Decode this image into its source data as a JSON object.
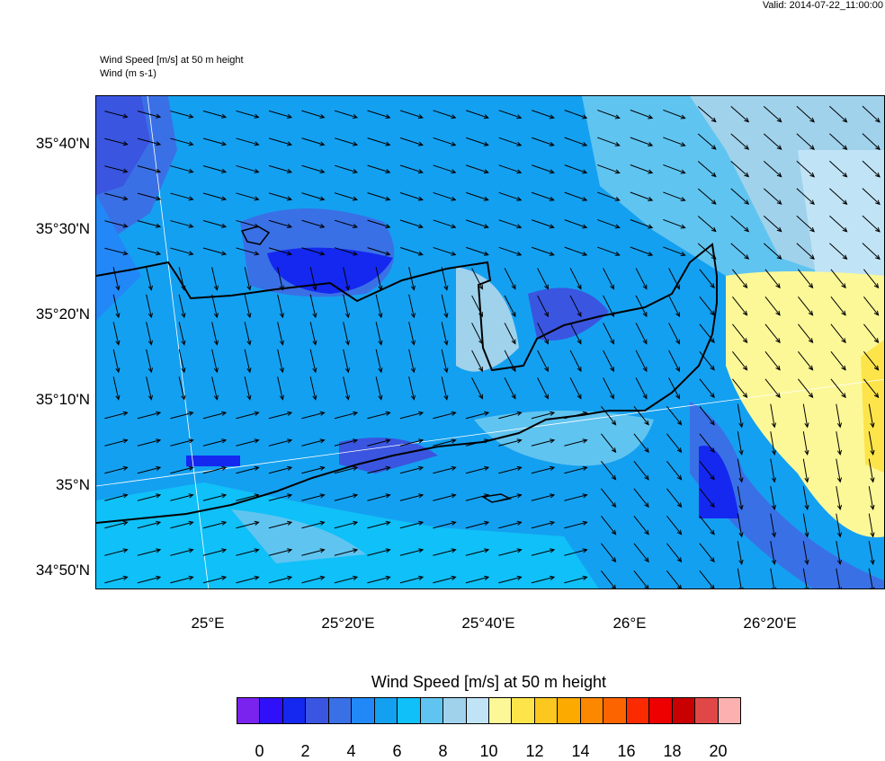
{
  "valid": "Valid: 2014-07-22_11:00:00",
  "title": "Wind Speed [m/s] at 50 m height",
  "subtitle": "Wind   (m s-1)",
  "lat_labels": [
    "35°40'N",
    "35°30'N",
    "35°20'N",
    "35°10'N",
    "35°N",
    "34°50'N"
  ],
  "lon_labels": [
    "25°E",
    "25°20'E",
    "25°40'E",
    "26°E",
    "26°20'E"
  ],
  "colorbar": {
    "title": "Wind Speed [m/s] at 50 m height",
    "colors": [
      "#7a22ee",
      "#3010f8",
      "#1428f0",
      "#3a55e0",
      "#3a70e6",
      "#2288f8",
      "#14a0f0",
      "#10c0f8",
      "#60c4f0",
      "#a0d2ec",
      "#c0e4f5",
      "#fcf898",
      "#fce44a",
      "#fcc820",
      "#fcaa00",
      "#fc8800",
      "#fc6400",
      "#fc2a00",
      "#ec0000",
      "#c80000",
      "#e04848",
      "#fcb0b0"
    ],
    "labels": [
      "0",
      "2",
      "4",
      "6",
      "8",
      "10",
      "12",
      "14",
      "16",
      "18",
      "20"
    ]
  }
}
